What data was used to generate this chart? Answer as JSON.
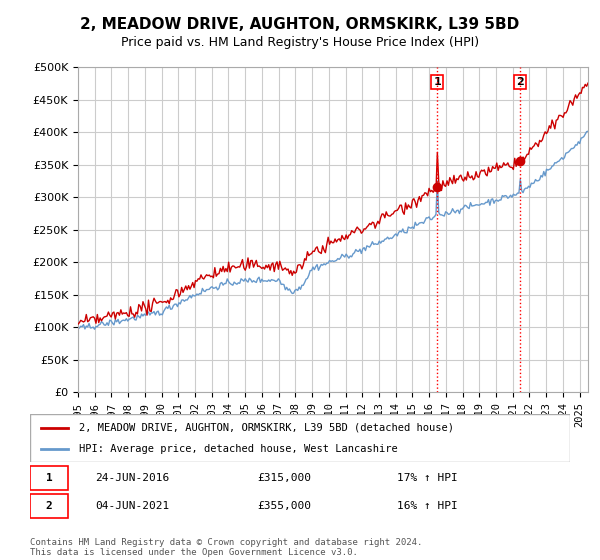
{
  "title": "2, MEADOW DRIVE, AUGHTON, ORMSKIRK, L39 5BD",
  "subtitle": "Price paid vs. HM Land Registry's House Price Index (HPI)",
  "ylabel_ticks": [
    "£0",
    "£50K",
    "£100K",
    "£150K",
    "£200K",
    "£250K",
    "£300K",
    "£350K",
    "£400K",
    "£450K",
    "£500K"
  ],
  "ytick_values": [
    0,
    50000,
    100000,
    150000,
    200000,
    250000,
    300000,
    350000,
    400000,
    450000,
    500000
  ],
  "xlim_start": 1995.0,
  "xlim_end": 2025.5,
  "ylim_min": 0,
  "ylim_max": 500000,
  "hpi_color": "#6699cc",
  "price_color": "#cc0000",
  "marker1_date": 2016.48,
  "marker2_date": 2021.42,
  "marker1_label": "1",
  "marker2_label": "2",
  "legend_label_price": "2, MEADOW DRIVE, AUGHTON, ORMSKIRK, L39 5BD (detached house)",
  "legend_label_hpi": "HPI: Average price, detached house, West Lancashire",
  "transaction1_date": "24-JUN-2016",
  "transaction1_price": "£315,000",
  "transaction1_hpi": "17% ↑ HPI",
  "transaction2_date": "04-JUN-2021",
  "transaction2_price": "£355,000",
  "transaction2_hpi": "16% ↑ HPI",
  "footer": "Contains HM Land Registry data © Crown copyright and database right 2024.\nThis data is licensed under the Open Government Licence v3.0.",
  "background_color": "#ffffff",
  "grid_color": "#cccccc",
  "title_fontsize": 11,
  "subtitle_fontsize": 9
}
